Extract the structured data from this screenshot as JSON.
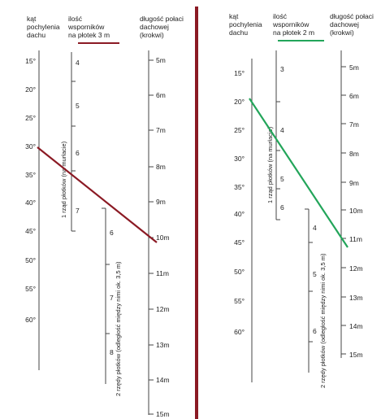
{
  "colors": {
    "divider": "#8b1a24",
    "left_line": "#8b1a24",
    "right_line": "#23a55a",
    "axis": "#444444"
  },
  "left": {
    "headers": {
      "angle": [
        "kąt",
        "pochylenia",
        "dachu"
      ],
      "supports": [
        "ilość",
        "wsporników",
        "na płotek 3 m"
      ],
      "length": [
        "długość połaci",
        "dachowej",
        "(krokwi)"
      ]
    },
    "angle_ticks": [
      "15°",
      "20°",
      "25°",
      "30°",
      "35°",
      "40°",
      "45°",
      "50°",
      "55°",
      "60°"
    ],
    "row1_ticks": [
      "4",
      "5",
      "6",
      "7"
    ],
    "row1_label": "1 rząd płotków (na murłacie)",
    "row2_ticks": [
      "6",
      "7",
      "8"
    ],
    "row2_label": "2 rzędy płotków (odległość między nimi ok. 3,5 m)",
    "length_ticks": [
      "5m",
      "6m",
      "7m",
      "8m",
      "9m",
      "10m",
      "11m",
      "12m",
      "13m",
      "14m",
      "15m"
    ]
  },
  "right": {
    "headers": {
      "angle": [
        "kąt",
        "pochylenia",
        "dachu"
      ],
      "supports": [
        "ilość",
        "wsporników",
        "na płotek 2 m"
      ],
      "length": [
        "długość połaci",
        "dachowej",
        "(krokwi)"
      ]
    },
    "angle_ticks": [
      "15°",
      "20°",
      "25°",
      "30°",
      "35°",
      "40°",
      "45°",
      "50°",
      "55°",
      "60°"
    ],
    "row1_ticks": [
      "3",
      "4",
      "5",
      "6"
    ],
    "row1_label": "1 rząd płotków (na murłacie)",
    "row2_ticks": [
      "4",
      "5",
      "6"
    ],
    "row2_label": "2 rzędy płotków (odległość między nimi ok. 3,5 m)",
    "length_ticks": [
      "5m",
      "6m",
      "7m",
      "8m",
      "9m",
      "10m",
      "11m",
      "12m",
      "13m",
      "14m",
      "15m"
    ]
  }
}
